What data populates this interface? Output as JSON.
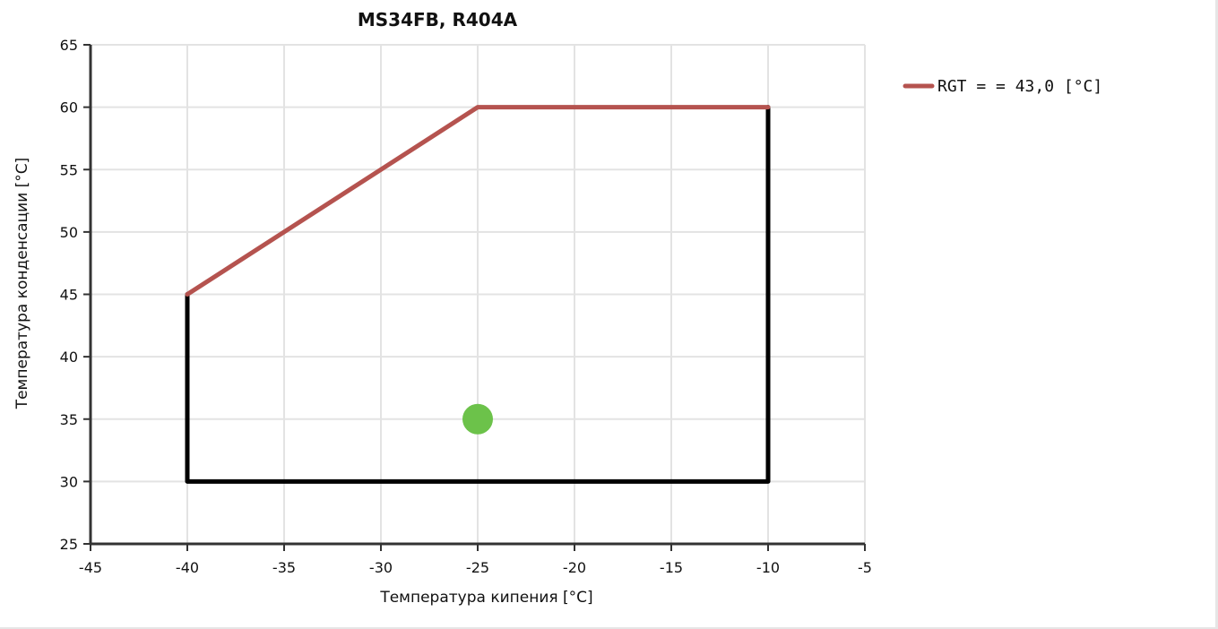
{
  "chart_data": {
    "type": "line",
    "title": "MS34FB, R404A",
    "xlabel": "Температура кипения [°C]",
    "ylabel": "Температура конденсации [°C]",
    "xlim": [
      -45,
      -5
    ],
    "ylim": [
      25,
      65
    ],
    "xticks": [
      -45,
      -40,
      -35,
      -30,
      -25,
      -20,
      -15,
      -10,
      -5
    ],
    "yticks": [
      25,
      30,
      35,
      40,
      45,
      50,
      55,
      60,
      65
    ],
    "grid": true,
    "legend_position": "right",
    "series": [
      {
        "name": "RGT = = 43,0 [°C]",
        "color": "#b5534f",
        "points": [
          [
            -40,
            45
          ],
          [
            -25,
            60
          ],
          [
            -10,
            60
          ]
        ]
      },
      {
        "color": "#000000",
        "points": [
          [
            -40,
            45
          ],
          [
            -40,
            30
          ],
          [
            -10,
            30
          ],
          [
            -10,
            60
          ]
        ]
      }
    ],
    "operating_point": {
      "x": -25,
      "y": 35,
      "color": "#6cc24a"
    }
  }
}
